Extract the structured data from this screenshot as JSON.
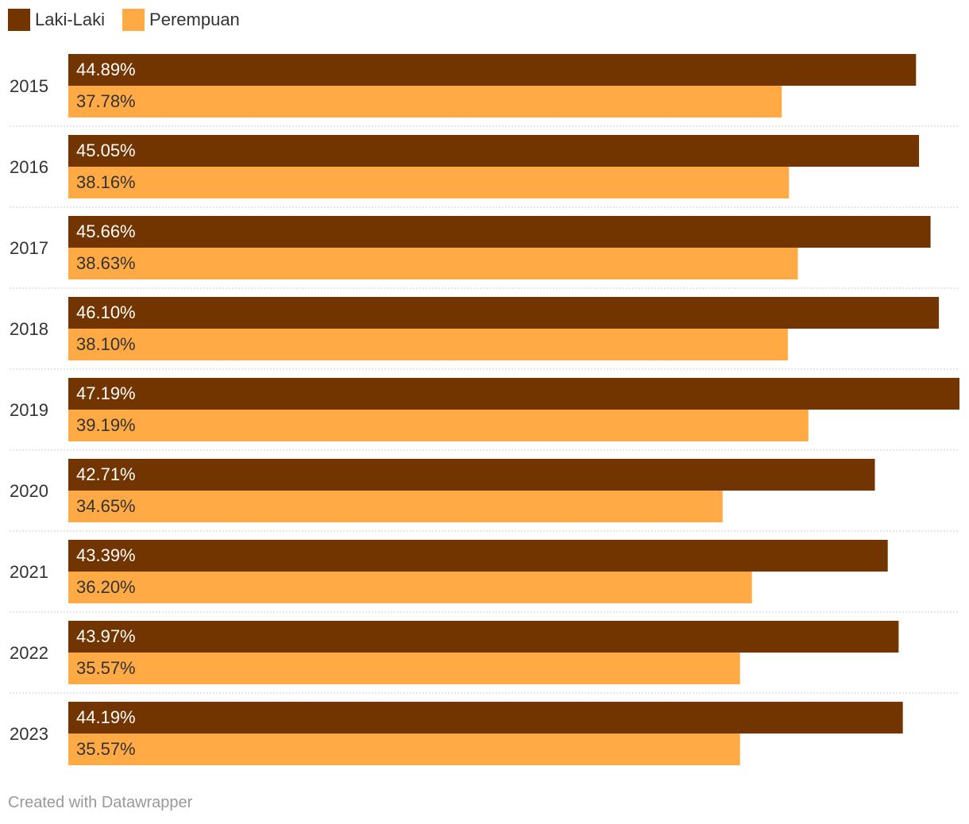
{
  "chart_data": {
    "type": "bar",
    "orientation": "horizontal",
    "categories": [
      "2015",
      "2016",
      "2017",
      "2018",
      "2019",
      "2020",
      "2021",
      "2022",
      "2023"
    ],
    "series": [
      {
        "name": "Laki-Laki",
        "color": "#733500",
        "label_color": "#ffffff",
        "values": [
          44.89,
          45.05,
          45.66,
          46.1,
          47.19,
          42.71,
          43.39,
          43.97,
          44.19
        ],
        "labels": [
          "44.89%",
          "45.05%",
          "45.66%",
          "46.10%",
          "47.19%",
          "42.71%",
          "43.39%",
          "43.97%",
          "44.19%"
        ]
      },
      {
        "name": "Perempuan",
        "color": "#FFAA44",
        "label_color": "#333333",
        "values": [
          37.78,
          38.16,
          38.63,
          38.1,
          39.19,
          34.65,
          36.2,
          35.57,
          35.57
        ],
        "labels": [
          "37.78%",
          "38.16%",
          "38.63%",
          "38.10%",
          "39.19%",
          "34.65%",
          "36.20%",
          "35.57%",
          "35.57%"
        ]
      }
    ],
    "xlim": [
      0,
      47.19
    ],
    "legend": "top-left",
    "grid": false
  },
  "footer": {
    "credit": "Created with Datawrapper"
  }
}
